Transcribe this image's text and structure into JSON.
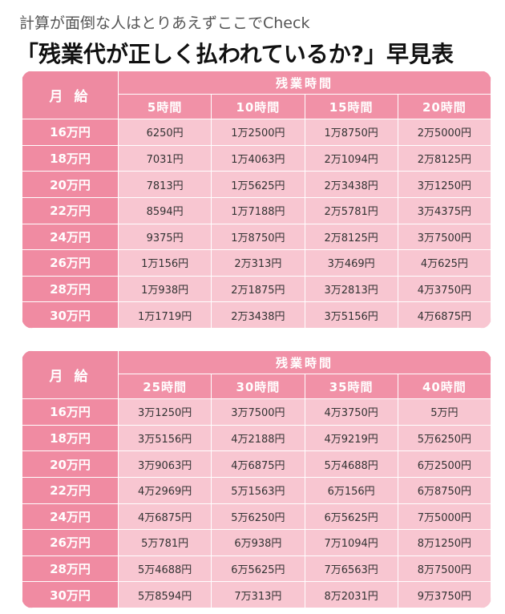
{
  "header": {
    "subtitle": "計算が面倒な人はとりあえずここでCheck",
    "title": "「残業代が正しく払われているか?」早見表"
  },
  "tables": [
    {
      "corner_label": "月 給",
      "group_label": "残業時間",
      "hours": [
        "5時間",
        "10時間",
        "15時間",
        "20時間"
      ],
      "rows": [
        {
          "salary": "16万円",
          "values": [
            "6250円",
            "1万2500円",
            "1万8750円",
            "2万5000円"
          ]
        },
        {
          "salary": "18万円",
          "values": [
            "7031円",
            "1万4063円",
            "2万1094円",
            "2万8125円"
          ]
        },
        {
          "salary": "20万円",
          "values": [
            "7813円",
            "1万5625円",
            "2万3438円",
            "3万1250円"
          ]
        },
        {
          "salary": "22万円",
          "values": [
            "8594円",
            "1万7188円",
            "2万5781円",
            "3万4375円"
          ]
        },
        {
          "salary": "24万円",
          "values": [
            "9375円",
            "1万8750円",
            "2万8125円",
            "3万7500円"
          ]
        },
        {
          "salary": "26万円",
          "values": [
            "1万156円",
            "2万313円",
            "3万469円",
            "4万625円"
          ]
        },
        {
          "salary": "28万円",
          "values": [
            "1万938円",
            "2万1875円",
            "3万2813円",
            "4万3750円"
          ]
        },
        {
          "salary": "30万円",
          "values": [
            "1万1719円",
            "2万3438円",
            "3万5156円",
            "4万6875円"
          ]
        }
      ]
    },
    {
      "corner_label": "月 給",
      "group_label": "残業時間",
      "hours": [
        "25時間",
        "30時間",
        "35時間",
        "40時間"
      ],
      "rows": [
        {
          "salary": "16万円",
          "values": [
            "3万1250円",
            "3万7500円",
            "4万3750円",
            "5万円"
          ]
        },
        {
          "salary": "18万円",
          "values": [
            "3万5156円",
            "4万2188円",
            "4万9219円",
            "5万6250円"
          ]
        },
        {
          "salary": "20万円",
          "values": [
            "3万9063円",
            "4万6875円",
            "5万4688円",
            "6万2500円"
          ]
        },
        {
          "salary": "22万円",
          "values": [
            "4万2969円",
            "5万1563円",
            "6万156円",
            "6万8750円"
          ]
        },
        {
          "salary": "24万円",
          "values": [
            "4万6875円",
            "5万6250円",
            "6万5625円",
            "7万5000円"
          ]
        },
        {
          "salary": "26万円",
          "values": [
            "5万781円",
            "6万938円",
            "7万1094円",
            "8万1250円"
          ]
        },
        {
          "salary": "28万円",
          "values": [
            "5万4688円",
            "6万5625円",
            "7万6563円",
            "8万7500円"
          ]
        },
        {
          "salary": "30万円",
          "values": [
            "5万8594円",
            "7万313円",
            "8万2031円",
            "9万3750円"
          ]
        }
      ]
    }
  ],
  "colors": {
    "header_pink": "#f191a7",
    "row_label_pink": "#f08ba2",
    "cell_pink": "#f8c6d1"
  }
}
